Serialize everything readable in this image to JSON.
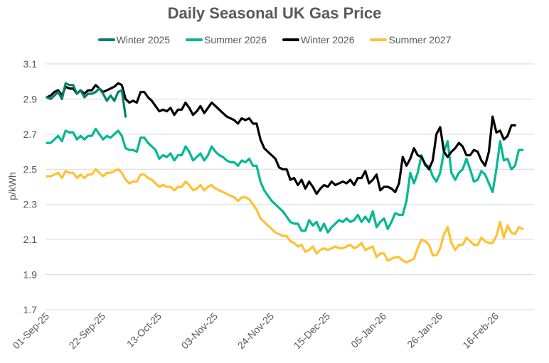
{
  "chart_data": {
    "type": "line",
    "title": "Daily Seasonal UK Gas Price",
    "xlabel": "",
    "ylabel": "p/kWh",
    "ylim": [
      1.7,
      3.1
    ],
    "yticks": [
      "1.7",
      "1.9",
      "2.1",
      "2.3",
      "2.5",
      "2.7",
      "2.9",
      "3.1"
    ],
    "xtick_labels": [
      "01-Sep-25",
      "22-Sep-25",
      "13-Oct-25",
      "03-Nov-25",
      "24-Nov-25",
      "15-Dec-25",
      "05-Jan-26",
      "26-Jan-26",
      "16-Feb-26"
    ],
    "x_note": "weekday index from 01-Sep-25; x tick every 15 weekdays",
    "grid": true,
    "legend_position": "top",
    "series": [
      {
        "name": "Winter 2025",
        "color": "#00806A",
        "values": [
          2.91,
          2.9,
          2.92,
          2.94,
          2.9,
          2.99,
          2.98,
          2.98,
          2.93,
          2.95,
          2.91,
          2.93,
          2.93,
          2.94,
          2.96,
          2.93,
          2.89,
          2.92,
          2.89,
          2.94,
          2.95,
          2.8
        ]
      },
      {
        "name": "Summer 2026",
        "color": "#00B894",
        "values": [
          2.65,
          2.65,
          2.67,
          2.69,
          2.66,
          2.72,
          2.71,
          2.71,
          2.67,
          2.69,
          2.67,
          2.69,
          2.69,
          2.73,
          2.7,
          2.67,
          2.69,
          2.68,
          2.7,
          2.72,
          2.69,
          2.62,
          2.61,
          2.61,
          2.6,
          2.68,
          2.68,
          2.65,
          2.63,
          2.61,
          2.56,
          2.58,
          2.57,
          2.59,
          2.55,
          2.58,
          2.58,
          2.63,
          2.6,
          2.55,
          2.57,
          2.59,
          2.55,
          2.58,
          2.63,
          2.6,
          2.58,
          2.57,
          2.55,
          2.54,
          2.54,
          2.52,
          2.55,
          2.54,
          2.56,
          2.52,
          2.52,
          2.43,
          2.38,
          2.35,
          2.32,
          2.3,
          2.28,
          2.26,
          2.23,
          2.2,
          2.19,
          2.19,
          2.15,
          2.15,
          2.21,
          2.18,
          2.2,
          2.15,
          2.19,
          2.14,
          2.17,
          2.19,
          2.21,
          2.2,
          2.22,
          2.2,
          2.21,
          2.24,
          2.2,
          2.23,
          2.2,
          2.26,
          2.17,
          2.2,
          2.22,
          2.16,
          2.2,
          2.25,
          2.24,
          2.24,
          2.32,
          2.48,
          2.42,
          2.48,
          2.58,
          2.52,
          2.52,
          2.46,
          2.43,
          2.48,
          2.6,
          2.66,
          2.48,
          2.44,
          2.48,
          2.5,
          2.56,
          2.5,
          2.43,
          2.44,
          2.49,
          2.47,
          2.42,
          2.37,
          2.5,
          2.66,
          2.55,
          2.56,
          2.5,
          2.52,
          2.61,
          2.61
        ]
      },
      {
        "name": "Winter 2026",
        "color": "#000000",
        "values": [
          2.91,
          2.92,
          2.94,
          2.95,
          2.92,
          2.97,
          2.96,
          2.96,
          2.93,
          2.95,
          2.93,
          2.95,
          2.95,
          2.98,
          2.96,
          2.94,
          2.95,
          2.96,
          2.97,
          2.99,
          2.98,
          2.9,
          2.88,
          2.89,
          2.88,
          2.94,
          2.94,
          2.91,
          2.89,
          2.86,
          2.83,
          2.84,
          2.83,
          2.85,
          2.81,
          2.84,
          2.84,
          2.88,
          2.85,
          2.81,
          2.83,
          2.86,
          2.82,
          2.85,
          2.88,
          2.86,
          2.84,
          2.82,
          2.8,
          2.79,
          2.78,
          2.76,
          2.79,
          2.78,
          2.79,
          2.76,
          2.76,
          2.67,
          2.62,
          2.6,
          2.58,
          2.56,
          2.51,
          2.5,
          2.5,
          2.44,
          2.45,
          2.41,
          2.44,
          2.39,
          2.43,
          2.4,
          2.36,
          2.39,
          2.41,
          2.4,
          2.43,
          2.41,
          2.42,
          2.43,
          2.42,
          2.44,
          2.41,
          2.45,
          2.45,
          2.49,
          2.42,
          2.44,
          2.47,
          2.38,
          2.4,
          2.4,
          2.39,
          2.37,
          2.42,
          2.57,
          2.52,
          2.56,
          2.62,
          2.58,
          2.57,
          2.53,
          2.5,
          2.55,
          2.7,
          2.74,
          2.6,
          2.57,
          2.6,
          2.62,
          2.65,
          2.63,
          2.58,
          2.58,
          2.61,
          2.6,
          2.55,
          2.52,
          2.6,
          2.8,
          2.71,
          2.72,
          2.67,
          2.69,
          2.75,
          2.75
        ]
      },
      {
        "name": "Summer 2027",
        "color": "#FFC133",
        "values": [
          2.46,
          2.46,
          2.47,
          2.48,
          2.45,
          2.49,
          2.48,
          2.48,
          2.45,
          2.47,
          2.45,
          2.47,
          2.47,
          2.5,
          2.48,
          2.46,
          2.48,
          2.48,
          2.49,
          2.5,
          2.48,
          2.44,
          2.42,
          2.43,
          2.43,
          2.47,
          2.47,
          2.45,
          2.44,
          2.42,
          2.4,
          2.41,
          2.4,
          2.4,
          2.38,
          2.4,
          2.4,
          2.43,
          2.41,
          2.38,
          2.39,
          2.41,
          2.38,
          2.4,
          2.41,
          2.39,
          2.38,
          2.37,
          2.36,
          2.35,
          2.34,
          2.32,
          2.34,
          2.34,
          2.33,
          2.3,
          2.27,
          2.22,
          2.2,
          2.18,
          2.16,
          2.14,
          2.13,
          2.12,
          2.12,
          2.09,
          2.08,
          2.06,
          2.07,
          2.03,
          2.04,
          2.06,
          2.02,
          2.04,
          2.05,
          2.04,
          2.05,
          2.06,
          2.05,
          2.05,
          2.06,
          2.07,
          2.05,
          2.06,
          2.08,
          2.04,
          2.05,
          2.06,
          2.0,
          2.02,
          2.02,
          1.98,
          1.99,
          2.0,
          2.0,
          1.98,
          1.97,
          1.98,
          1.99,
          2.05,
          2.1,
          2.09,
          2.07,
          2.01,
          2.01,
          2.05,
          2.13,
          2.17,
          2.08,
          2.04,
          2.07,
          2.07,
          2.11,
          2.09,
          2.07,
          2.07,
          2.11,
          2.09,
          2.08,
          2.08,
          2.12,
          2.2,
          2.11,
          2.18,
          2.14,
          2.13,
          2.17,
          2.16
        ]
      }
    ]
  }
}
